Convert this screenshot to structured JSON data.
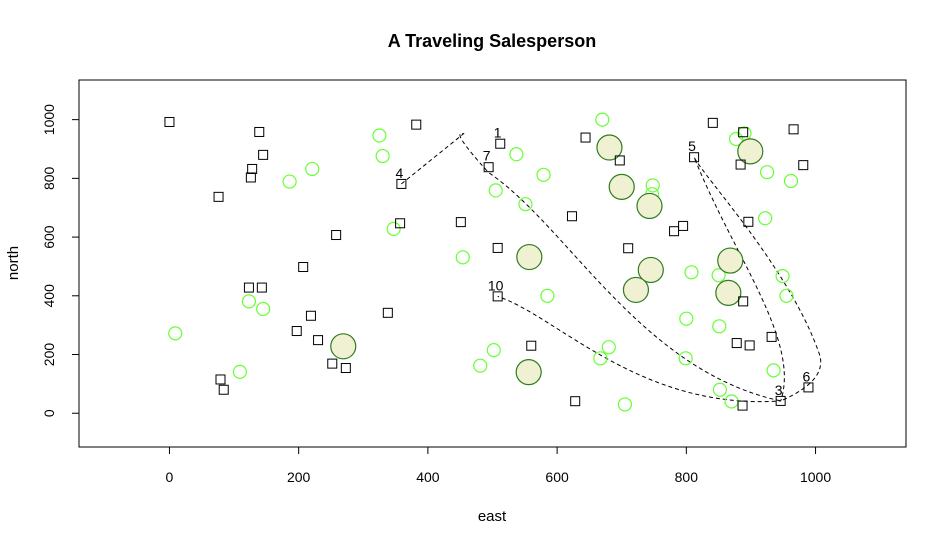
{
  "chart_data": {
    "type": "scatter",
    "title": "A Traveling Salesperson",
    "xlabel": "east",
    "ylabel": "north",
    "xlim": [
      -140,
      1140
    ],
    "ylim": [
      -115,
      1135
    ],
    "x_ticks": [
      0,
      200,
      400,
      600,
      800,
      1000
    ],
    "y_ticks": [
      0,
      200,
      400,
      600,
      800,
      1000
    ],
    "grid": false,
    "colors": {
      "square_stroke": "#000000",
      "small_circle_stroke": "#66ff33",
      "large_circle_stroke": "#2e7d1e",
      "large_circle_fill": "#f0f0d2",
      "route": "#000000"
    },
    "squares": [
      [
        0,
        992
      ],
      [
        139,
        958
      ],
      [
        145,
        880
      ],
      [
        128,
        832
      ],
      [
        126,
        803
      ],
      [
        76,
        737
      ],
      [
        382,
        983
      ],
      [
        512,
        918
      ],
      [
        494,
        838
      ],
      [
        359,
        781
      ],
      [
        357,
        647
      ],
      [
        451,
        651
      ],
      [
        258,
        607
      ],
      [
        207,
        498
      ],
      [
        123,
        428
      ],
      [
        143,
        428
      ],
      [
        219,
        332
      ],
      [
        197,
        280
      ],
      [
        230,
        249
      ],
      [
        338,
        342
      ],
      [
        252,
        169
      ],
      [
        273,
        154
      ],
      [
        79,
        115
      ],
      [
        84,
        80
      ],
      [
        508,
        563
      ],
      [
        508,
        398
      ],
      [
        560,
        230
      ],
      [
        628,
        41
      ],
      [
        623,
        671
      ],
      [
        644,
        939
      ],
      [
        697,
        861
      ],
      [
        710,
        562
      ],
      [
        781,
        620
      ],
      [
        795,
        638
      ],
      [
        841,
        989
      ],
      [
        888,
        957
      ],
      [
        812,
        872
      ],
      [
        884,
        847
      ],
      [
        896,
        652
      ],
      [
        966,
        967
      ],
      [
        981,
        845
      ],
      [
        878,
        239
      ],
      [
        898,
        231
      ],
      [
        932,
        260
      ],
      [
        888,
        381
      ],
      [
        887,
        26
      ],
      [
        946,
        42
      ],
      [
        989,
        88
      ]
    ],
    "small_circles": [
      [
        325,
        946
      ],
      [
        330,
        876
      ],
      [
        221,
        832
      ],
      [
        186,
        789
      ],
      [
        347,
        628
      ],
      [
        505,
        759
      ],
      [
        537,
        882
      ],
      [
        579,
        812
      ],
      [
        551,
        712
      ],
      [
        454,
        531
      ],
      [
        585,
        400
      ],
      [
        123,
        381
      ],
      [
        145,
        355
      ],
      [
        9,
        272
      ],
      [
        109,
        141
      ],
      [
        502,
        215
      ],
      [
        481,
        162
      ],
      [
        670,
        1000
      ],
      [
        748,
        776
      ],
      [
        747,
        746
      ],
      [
        808,
        480
      ],
      [
        850,
        470
      ],
      [
        800,
        322
      ],
      [
        851,
        296
      ],
      [
        680,
        225
      ],
      [
        667,
        187
      ],
      [
        799,
        187
      ],
      [
        852,
        80
      ],
      [
        870,
        40
      ],
      [
        705,
        30
      ],
      [
        877,
        934
      ],
      [
        890,
        953
      ],
      [
        925,
        821
      ],
      [
        962,
        791
      ],
      [
        922,
        664
      ],
      [
        949,
        467
      ],
      [
        955,
        400
      ],
      [
        935,
        146
      ]
    ],
    "large_circles": [
      [
        269,
        228
      ],
      [
        556,
        140
      ],
      [
        557,
        532
      ],
      [
        681,
        905
      ],
      [
        700,
        771
      ],
      [
        743,
        706
      ],
      [
        745,
        488
      ],
      [
        722,
        420
      ],
      [
        868,
        520
      ],
      [
        865,
        410
      ],
      [
        899,
        892
      ]
    ],
    "labeled_points": [
      {
        "label": "1",
        "x": 511,
        "y": 918
      },
      {
        "label": "7",
        "x": 494,
        "y": 840
      },
      {
        "label": "4",
        "x": 359,
        "y": 781
      },
      {
        "label": "5",
        "x": 812,
        "y": 872
      },
      {
        "label": "10",
        "x": 508,
        "y": 398
      },
      {
        "label": "3",
        "x": 946,
        "y": 42
      },
      {
        "label": "6",
        "x": 989,
        "y": 88
      }
    ]
  }
}
